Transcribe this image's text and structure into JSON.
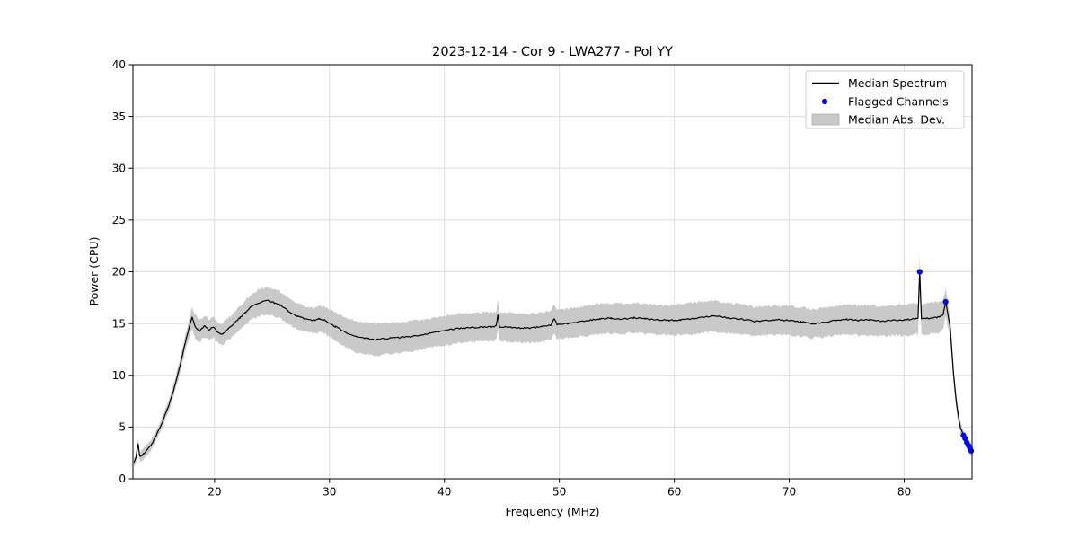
{
  "legend": {
    "items": [
      {
        "label": "Median Spectrum",
        "type": "line"
      },
      {
        "label": "Flagged Channels",
        "type": "dot"
      },
      {
        "label": "Median Abs. Dev.",
        "type": "patch"
      }
    ]
  },
  "chart_data": {
    "type": "line",
    "title": "2023-12-14 - Cor 9 - LWA277 - Pol YY",
    "xlabel": "Frequency (MHz)",
    "ylabel": "Power (CPU)",
    "xlim": [
      12.9,
      85.9
    ],
    "ylim": [
      0,
      40
    ],
    "x_ticks": [
      20,
      30,
      40,
      50,
      60,
      70,
      80
    ],
    "y_ticks": [
      0,
      5,
      10,
      15,
      20,
      25,
      30,
      35,
      40
    ],
    "grid": true,
    "legend_position": "upper right",
    "colors": {
      "line": "#000000",
      "band": "#c9c9c9",
      "flagged": "#0000ff",
      "grid": "#dcdcdc",
      "frame": "#000000"
    },
    "series": [
      {
        "name": "Median Spectrum",
        "type": "line",
        "units": [
          "MHz",
          "CPU"
        ],
        "anchor_points": [
          [
            13.0,
            1.55
          ],
          [
            13.15,
            2.0
          ],
          [
            13.35,
            3.35
          ],
          [
            13.5,
            2.15
          ],
          [
            13.8,
            2.4
          ],
          [
            14.2,
            2.85
          ],
          [
            14.6,
            3.5
          ],
          [
            15.0,
            4.35
          ],
          [
            15.5,
            5.6
          ],
          [
            16.0,
            7.0
          ],
          [
            16.5,
            8.8
          ],
          [
            17.0,
            10.9
          ],
          [
            17.4,
            12.9
          ],
          [
            17.8,
            14.6
          ],
          [
            18.05,
            15.6
          ],
          [
            18.3,
            14.7
          ],
          [
            18.7,
            14.25
          ],
          [
            19.1,
            14.75
          ],
          [
            19.5,
            14.4
          ],
          [
            19.9,
            14.65
          ],
          [
            20.3,
            14.1
          ],
          [
            20.7,
            13.95
          ],
          [
            21.2,
            14.5
          ],
          [
            21.7,
            15.0
          ],
          [
            22.2,
            15.55
          ],
          [
            22.7,
            16.1
          ],
          [
            23.2,
            16.6
          ],
          [
            23.7,
            16.9
          ],
          [
            24.2,
            17.15
          ],
          [
            24.7,
            17.2
          ],
          [
            25.2,
            17.0
          ],
          [
            25.7,
            16.8
          ],
          [
            26.2,
            16.4
          ],
          [
            26.7,
            16.0
          ],
          [
            27.2,
            15.7
          ],
          [
            27.7,
            15.5
          ],
          [
            28.2,
            15.35
          ],
          [
            28.7,
            15.3
          ],
          [
            29.1,
            15.45
          ],
          [
            29.5,
            15.35
          ],
          [
            30.0,
            15.05
          ],
          [
            30.5,
            14.7
          ],
          [
            31.0,
            14.4
          ],
          [
            31.5,
            14.1
          ],
          [
            32.0,
            13.85
          ],
          [
            32.5,
            13.7
          ],
          [
            33.0,
            13.6
          ],
          [
            33.5,
            13.5
          ],
          [
            34.0,
            13.45
          ],
          [
            34.5,
            13.5
          ],
          [
            35.0,
            13.55
          ],
          [
            36.0,
            13.65
          ],
          [
            37.0,
            13.75
          ],
          [
            38.0,
            13.9
          ],
          [
            39.0,
            14.1
          ],
          [
            40.0,
            14.3
          ],
          [
            41.0,
            14.5
          ],
          [
            42.0,
            14.6
          ],
          [
            43.0,
            14.65
          ],
          [
            44.0,
            14.7
          ],
          [
            44.5,
            14.75
          ],
          [
            44.65,
            15.85
          ],
          [
            44.8,
            14.7
          ],
          [
            45.5,
            14.65
          ],
          [
            46.5,
            14.55
          ],
          [
            47.5,
            14.55
          ],
          [
            48.5,
            14.7
          ],
          [
            49.3,
            14.85
          ],
          [
            49.55,
            15.45
          ],
          [
            49.8,
            14.9
          ],
          [
            50.5,
            15.0
          ],
          [
            51.5,
            15.1
          ],
          [
            52.5,
            15.3
          ],
          [
            53.5,
            15.45
          ],
          [
            54.5,
            15.5
          ],
          [
            55.5,
            15.45
          ],
          [
            56.5,
            15.55
          ],
          [
            57.5,
            15.45
          ],
          [
            58.5,
            15.35
          ],
          [
            59.5,
            15.3
          ],
          [
            60.5,
            15.35
          ],
          [
            61.5,
            15.45
          ],
          [
            62.5,
            15.6
          ],
          [
            63.3,
            15.75
          ],
          [
            64.0,
            15.65
          ],
          [
            65.0,
            15.5
          ],
          [
            66.0,
            15.4
          ],
          [
            67.0,
            15.2
          ],
          [
            68.0,
            15.3
          ],
          [
            69.0,
            15.35
          ],
          [
            70.0,
            15.3
          ],
          [
            71.0,
            15.15
          ],
          [
            72.0,
            15.0
          ],
          [
            73.0,
            15.1
          ],
          [
            74.0,
            15.3
          ],
          [
            75.0,
            15.4
          ],
          [
            76.0,
            15.3
          ],
          [
            77.0,
            15.35
          ],
          [
            78.0,
            15.2
          ],
          [
            79.0,
            15.3
          ],
          [
            80.0,
            15.35
          ],
          [
            80.8,
            15.45
          ],
          [
            81.2,
            15.5
          ],
          [
            81.35,
            20.0
          ],
          [
            81.5,
            15.45
          ],
          [
            82.0,
            15.5
          ],
          [
            82.6,
            15.55
          ],
          [
            83.1,
            15.65
          ],
          [
            83.4,
            15.9
          ],
          [
            83.6,
            17.1
          ],
          [
            83.75,
            16.2
          ],
          [
            84.0,
            14.6
          ],
          [
            84.3,
            10.0
          ],
          [
            84.6,
            6.8
          ],
          [
            84.9,
            4.9
          ],
          [
            85.15,
            4.2
          ],
          [
            85.35,
            3.8
          ],
          [
            85.55,
            3.3
          ],
          [
            85.7,
            3.0
          ],
          [
            85.8,
            2.75
          ],
          [
            85.86,
            2.6
          ]
        ]
      },
      {
        "name": "Median Abs. Dev.",
        "type": "band",
        "half_width_anchors": [
          [
            13.0,
            0.45
          ],
          [
            14,
            0.5
          ],
          [
            15,
            0.5
          ],
          [
            16,
            0.55
          ],
          [
            17,
            0.7
          ],
          [
            17.8,
            0.9
          ],
          [
            18.2,
            1.15
          ],
          [
            19,
            1.05
          ],
          [
            20,
            1.0
          ],
          [
            21,
            1.05
          ],
          [
            22,
            1.1
          ],
          [
            23,
            1.2
          ],
          [
            24,
            1.3
          ],
          [
            25,
            1.3
          ],
          [
            26,
            1.3
          ],
          [
            27,
            1.25
          ],
          [
            28,
            1.2
          ],
          [
            29,
            1.25
          ],
          [
            30,
            1.35
          ],
          [
            31,
            1.4
          ],
          [
            32,
            1.5
          ],
          [
            33,
            1.55
          ],
          [
            34,
            1.55
          ],
          [
            35,
            1.5
          ],
          [
            37,
            1.5
          ],
          [
            39,
            1.4
          ],
          [
            41,
            1.4
          ],
          [
            43,
            1.4
          ],
          [
            45,
            1.4
          ],
          [
            47,
            1.4
          ],
          [
            49,
            1.4
          ],
          [
            51,
            1.4
          ],
          [
            53,
            1.5
          ],
          [
            55,
            1.45
          ],
          [
            57,
            1.45
          ],
          [
            59,
            1.4
          ],
          [
            61,
            1.5
          ],
          [
            63,
            1.5
          ],
          [
            65,
            1.45
          ],
          [
            67,
            1.4
          ],
          [
            69,
            1.4
          ],
          [
            71,
            1.4
          ],
          [
            73,
            1.4
          ],
          [
            75,
            1.45
          ],
          [
            77,
            1.45
          ],
          [
            79,
            1.45
          ],
          [
            80,
            1.5
          ],
          [
            82,
            1.5
          ],
          [
            83,
            1.5
          ],
          [
            83.6,
            1.3
          ],
          [
            84.0,
            1.1
          ],
          [
            84.4,
            0.8
          ],
          [
            84.9,
            0.55
          ],
          [
            85.3,
            0.45
          ],
          [
            85.86,
            0.4
          ]
        ]
      },
      {
        "name": "Flagged Channels",
        "type": "scatter",
        "points": [
          [
            81.35,
            20.0
          ],
          [
            83.6,
            17.1
          ],
          [
            85.15,
            4.2
          ],
          [
            85.3,
            3.9
          ],
          [
            85.45,
            3.5
          ],
          [
            85.6,
            3.2
          ],
          [
            85.72,
            2.95
          ],
          [
            85.82,
            2.7
          ]
        ]
      }
    ],
    "render_noise": {
      "seed": 20231214,
      "line_jitter": 0.065,
      "band_jitter": 0.13,
      "step": 0.12
    }
  }
}
